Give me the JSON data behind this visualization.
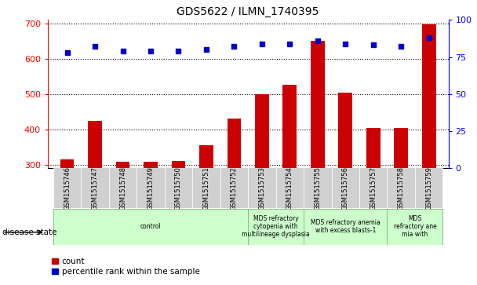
{
  "title": "GDS5622 / ILMN_1740395",
  "samples": [
    "GSM1515746",
    "GSM1515747",
    "GSM1515748",
    "GSM1515749",
    "GSM1515750",
    "GSM1515751",
    "GSM1515752",
    "GSM1515753",
    "GSM1515754",
    "GSM1515755",
    "GSM1515756",
    "GSM1515757",
    "GSM1515758",
    "GSM1515759"
  ],
  "counts": [
    315,
    423,
    308,
    308,
    310,
    355,
    430,
    500,
    527,
    650,
    505,
    404,
    403,
    697
  ],
  "percentile_ranks": [
    78,
    82,
    79,
    79,
    79,
    80,
    82,
    84,
    84,
    86,
    84,
    83,
    82,
    88
  ],
  "bar_color": "#cc0000",
  "dot_color": "#0000cc",
  "ylim_left": [
    290,
    710
  ],
  "ylim_right": [
    0,
    100
  ],
  "yticks_left": [
    300,
    400,
    500,
    600,
    700
  ],
  "yticks_right": [
    0,
    25,
    50,
    75,
    100
  ],
  "grid_y": [
    300,
    400,
    500,
    600,
    700
  ],
  "disease_groups": [
    {
      "label": "control",
      "start": 0,
      "end": 7
    },
    {
      "label": "MDS refractory\ncytopenia with\nmultilineage dysplasia",
      "start": 7,
      "end": 9
    },
    {
      "label": "MDS refractory anemia\nwith excess blasts-1",
      "start": 9,
      "end": 12
    },
    {
      "label": "MDS\nrefractory ane\nmia with",
      "start": 12,
      "end": 14
    }
  ],
  "disease_state_label": "disease state",
  "legend_count_label": "count",
  "legend_pct_label": "percentile rank within the sample",
  "background_color": "#ffffff",
  "light_green": "#ccffcc",
  "gray_bg": "#d0d0d0",
  "bar_width": 0.5,
  "figsize": [
    6.08,
    3.63
  ],
  "dpi": 100
}
